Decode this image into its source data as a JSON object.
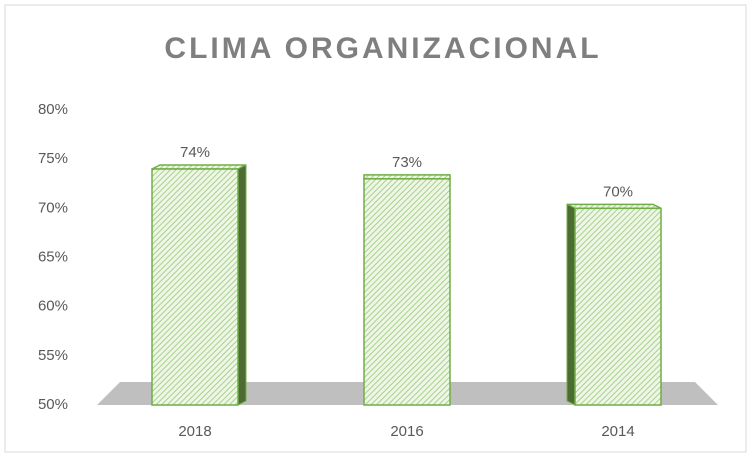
{
  "chart_data": {
    "type": "bar",
    "title": "CLIMA ORGANIZACIONAL",
    "categories": [
      "2018",
      "2016",
      "2014"
    ],
    "values": [
      74,
      73,
      70
    ],
    "value_labels": [
      "74%",
      "73%",
      "70%"
    ],
    "color": "#70ad47",
    "ylim": [
      50,
      80
    ],
    "yticks": [
      {
        "value": 50,
        "label": "50%"
      },
      {
        "value": 55,
        "label": "55%"
      },
      {
        "value": 60,
        "label": "60%"
      },
      {
        "value": 65,
        "label": "65%"
      },
      {
        "value": 70,
        "label": "70%"
      },
      {
        "value": 75,
        "label": "75%"
      },
      {
        "value": 80,
        "label": "80%"
      }
    ],
    "grid": false
  }
}
